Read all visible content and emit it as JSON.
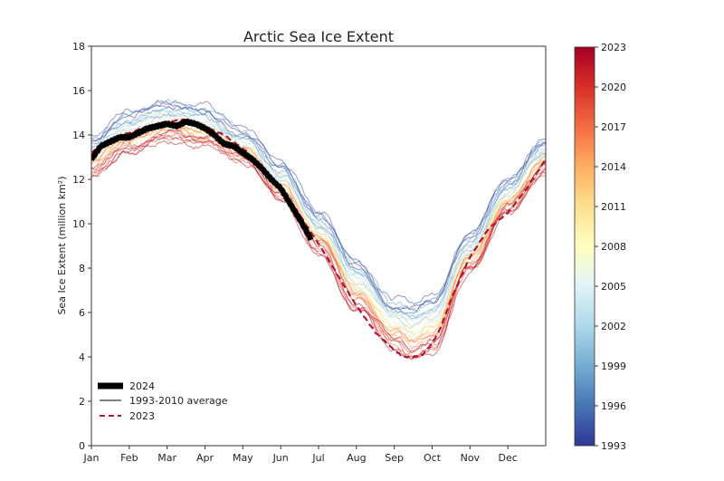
{
  "chart_data": {
    "type": "line",
    "title": "Arctic Sea Ice Extent",
    "xlabel": "",
    "ylabel": "Sea Ice Extent (million km²)",
    "xlim": [
      0,
      12
    ],
    "ylim": [
      0,
      18
    ],
    "yticks": [
      0,
      2,
      4,
      6,
      8,
      10,
      12,
      14,
      16,
      18
    ],
    "xtick_labels": [
      "Jan",
      "Feb",
      "Mar",
      "Apr",
      "May",
      "Jun",
      "Jul",
      "Aug",
      "Sep",
      "Oct",
      "Nov",
      "Dec"
    ],
    "x_unit": "months since Jan 1",
    "grid": false,
    "legend": {
      "position": "lower-left",
      "entries": [
        {
          "label": "2024",
          "style": "thick-solid",
          "color": "#000000"
        },
        {
          "label": "1993-2010 average",
          "style": "solid",
          "color": "#808080"
        },
        {
          "label": "2023",
          "style": "dashed",
          "color": "#b2182b"
        }
      ]
    },
    "colorbar": {
      "label": "",
      "range": [
        1993,
        2023
      ],
      "ticks": [
        1993,
        1996,
        1999,
        2002,
        2005,
        2008,
        2011,
        2014,
        2017,
        2020,
        2023
      ],
      "colormap": [
        "#313695",
        "#4575b4",
        "#74add1",
        "#abd9e9",
        "#e0f3f8",
        "#ffffbf",
        "#fee090",
        "#fdae61",
        "#f46d43",
        "#d73027",
        "#a50026"
      ]
    },
    "series": [
      {
        "name": "2024",
        "x": [
          0,
          0.25,
          0.5,
          0.75,
          1.0,
          1.25,
          1.5,
          1.75,
          2.0,
          2.25,
          2.5,
          2.75,
          3.0,
          3.25,
          3.5,
          3.75,
          4.0,
          4.25,
          4.5,
          4.75,
          5.0,
          5.25,
          5.5,
          5.8
        ],
        "values": [
          12.9,
          13.5,
          13.7,
          13.9,
          13.9,
          14.1,
          14.3,
          14.4,
          14.5,
          14.4,
          14.6,
          14.5,
          14.3,
          14.0,
          13.6,
          13.5,
          13.2,
          12.9,
          12.5,
          12.0,
          11.6,
          10.9,
          10.2,
          9.3
        ]
      },
      {
        "name": "2023",
        "x": [
          0,
          0.5,
          1.0,
          1.5,
          2.0,
          2.5,
          3.0,
          3.5,
          4.0,
          4.5,
          5.0,
          5.5,
          6.0,
          6.5,
          7.0,
          7.5,
          8.0,
          8.25,
          8.5,
          8.75,
          9.0,
          9.25,
          9.5,
          10.0,
          10.5,
          11.0,
          11.5,
          12.0
        ],
        "values": [
          13.2,
          13.8,
          14.1,
          14.4,
          14.6,
          14.7,
          14.4,
          14.0,
          13.4,
          12.6,
          11.6,
          10.4,
          9.1,
          7.7,
          6.3,
          5.1,
          4.3,
          4.0,
          4.0,
          4.1,
          4.6,
          5.4,
          6.6,
          8.5,
          9.8,
          10.5,
          11.6,
          12.9
        ]
      }
    ],
    "historical_years_note": "Thin lines for each year 1993-2023 colored by year using the colorbar",
    "historical_envelope": {
      "x": [
        0,
        1,
        2,
        3,
        4,
        5,
        6,
        7,
        8,
        8.5,
        9,
        10,
        11,
        12
      ],
      "early_years_approx": [
        13.8,
        14.9,
        15.4,
        15.1,
        14.1,
        12.6,
        10.4,
        8.2,
        6.4,
        6.2,
        6.6,
        9.4,
        11.8,
        13.7
      ],
      "late_years_approx": [
        12.3,
        13.3,
        13.9,
        13.6,
        12.9,
        11.2,
        8.8,
        6.3,
        4.6,
        4.0,
        4.4,
        8.0,
        10.6,
        12.4
      ]
    }
  }
}
